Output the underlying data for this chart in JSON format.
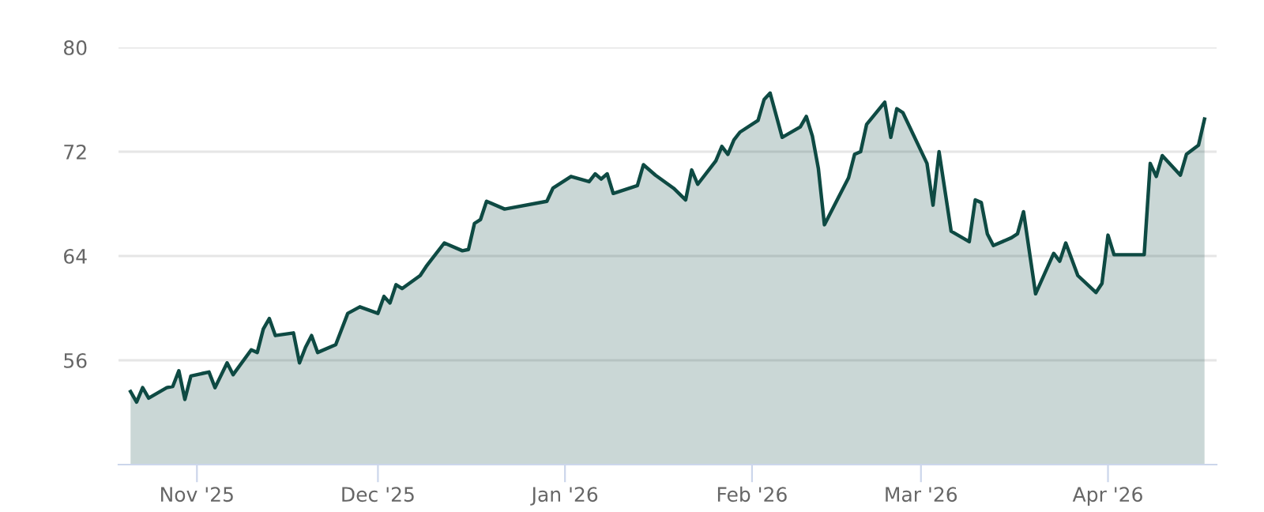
{
  "chart_data": {
    "type": "area",
    "x": [
      "2025-10-21",
      "2025-10-22",
      "2025-10-23",
      "2025-10-24",
      "2025-10-27",
      "2025-10-28",
      "2025-10-29",
      "2025-10-30",
      "2025-10-31",
      "2025-11-03",
      "2025-11-04",
      "2025-11-06",
      "2025-11-07",
      "2025-11-10",
      "2025-11-11",
      "2025-11-12",
      "2025-11-13",
      "2025-11-14",
      "2025-11-17",
      "2025-11-18",
      "2025-11-19",
      "2025-11-20",
      "2025-11-21",
      "2025-11-24",
      "2025-11-26",
      "2025-11-28",
      "2025-12-01",
      "2025-12-02",
      "2025-12-03",
      "2025-12-04",
      "2025-12-05",
      "2025-12-08",
      "2025-12-09",
      "2025-12-12",
      "2025-12-15",
      "2025-12-16",
      "2025-12-17",
      "2025-12-18",
      "2025-12-19",
      "2025-12-22",
      "2025-12-29",
      "2025-12-30",
      "2026-01-02",
      "2026-01-05",
      "2026-01-06",
      "2026-01-07",
      "2026-01-08",
      "2026-01-09",
      "2026-01-13",
      "2026-01-14",
      "2026-01-16",
      "2026-01-19",
      "2026-01-21",
      "2026-01-22",
      "2026-01-23",
      "2026-01-26",
      "2026-01-27",
      "2026-01-28",
      "2026-01-29",
      "2026-01-30",
      "2026-02-02",
      "2026-02-03",
      "2026-02-04",
      "2026-02-06",
      "2026-02-09",
      "2026-02-10",
      "2026-02-11",
      "2026-02-12",
      "2026-02-13",
      "2026-02-17",
      "2026-02-18",
      "2026-02-19",
      "2026-02-20",
      "2026-02-23",
      "2026-02-24",
      "2026-02-25",
      "2026-02-26",
      "2026-03-02",
      "2026-03-03",
      "2026-03-04",
      "2026-03-06",
      "2026-03-09",
      "2026-03-10",
      "2026-03-11",
      "2026-03-12",
      "2026-03-13",
      "2026-03-16",
      "2026-03-17",
      "2026-03-18",
      "2026-03-20",
      "2026-03-23",
      "2026-03-24",
      "2026-03-25",
      "2026-03-27",
      "2026-03-30",
      "2026-03-31",
      "2026-04-01",
      "2026-04-02",
      "2026-04-07",
      "2026-04-08",
      "2026-04-09",
      "2026-04-10",
      "2026-04-13",
      "2026-04-14",
      "2026-04-16",
      "2026-04-17"
    ],
    "series": [
      {
        "color": "#0e4a43",
        "values": [
          53.6,
          52.8,
          53.9,
          53.1,
          53.9,
          54.0,
          55.2,
          53.0,
          54.8,
          55.1,
          53.9,
          55.8,
          54.9,
          56.8,
          56.6,
          58.4,
          59.2,
          57.9,
          58.1,
          55.8,
          57.0,
          57.9,
          56.6,
          57.2,
          59.6,
          60.1,
          59.6,
          60.9,
          60.4,
          61.8,
          61.5,
          62.5,
          63.2,
          65.0,
          64.4,
          64.5,
          66.5,
          66.8,
          68.2,
          67.6,
          68.2,
          69.2,
          70.1,
          69.7,
          70.3,
          69.9,
          70.3,
          68.8,
          69.4,
          71.0,
          70.2,
          69.2,
          68.3,
          70.6,
          69.5,
          71.3,
          72.4,
          71.8,
          72.9,
          73.5,
          74.4,
          76.0,
          76.5,
          73.1,
          73.9,
          74.7,
          73.2,
          70.7,
          66.4,
          70.0,
          71.8,
          72.0,
          74.1,
          75.8,
          73.1,
          75.3,
          75.0,
          71.1,
          67.9,
          72.0,
          65.9,
          65.1,
          68.3,
          68.1,
          65.7,
          64.8,
          65.4,
          65.7,
          67.4,
          61.1,
          64.2,
          63.6,
          65.0,
          62.5,
          61.2,
          61.9,
          65.6,
          64.1,
          64.1,
          71.1,
          70.1,
          71.7,
          70.2,
          71.8,
          72.5,
          74.5
        ]
      }
    ],
    "xlim": [
      "2025-10-19",
      "2026-04-19"
    ],
    "xticks": [
      {
        "value": "2025-11-01",
        "label": "Nov '25"
      },
      {
        "value": "2025-12-01",
        "label": "Dec '25"
      },
      {
        "value": "2026-01-01",
        "label": "Jan '26"
      },
      {
        "value": "2026-02-01",
        "label": "Feb '26"
      },
      {
        "value": "2026-03-01",
        "label": "Mar '26"
      },
      {
        "value": "2026-04-01",
        "label": "Apr '26"
      }
    ],
    "ylim": [
      48,
      80
    ],
    "yticks": [
      56,
      64,
      72,
      80
    ],
    "grid": "y",
    "marker": "none",
    "line_style": "solid"
  }
}
